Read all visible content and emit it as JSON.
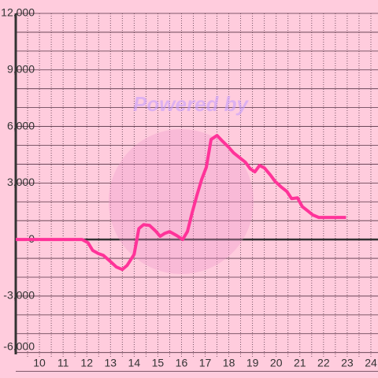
{
  "chart_data": {
    "type": "line",
    "watermark": "Powered by",
    "x": [
      9,
      11.8,
      12.05,
      12.25,
      12.5,
      12.7,
      13,
      13.25,
      13.5,
      13.7,
      14,
      14.2,
      14.4,
      14.65,
      14.9,
      15.1,
      15.3,
      15.5,
      15.8,
      16.05,
      16.25,
      16.45,
      16.65,
      16.85,
      17.05,
      17.25,
      17.5,
      17.7,
      18,
      18.2,
      18.45,
      18.7,
      18.9,
      19.1,
      19.3,
      19.5,
      19.75,
      19.95,
      20.2,
      20.45,
      20.65,
      20.9,
      21.1,
      21.35,
      21.55,
      21.8,
      22.95
    ],
    "series": [
      {
        "color": "#ff3399",
        "values": [
          0,
          0,
          -170,
          -580,
          -750,
          -840,
          -1170,
          -1460,
          -1590,
          -1380,
          -790,
          580,
          790,
          750,
          460,
          170,
          330,
          420,
          210,
          0,
          420,
          1420,
          2340,
          3180,
          3840,
          5310,
          5520,
          5260,
          4890,
          4600,
          4350,
          4100,
          3760,
          3590,
          3930,
          3800,
          3430,
          3090,
          2800,
          2550,
          2170,
          2210,
          1750,
          1500,
          1300,
          1170,
          1170
        ]
      }
    ],
    "xlim": [
      9,
      24.3
    ],
    "ylim": [
      -7350,
      12000
    ],
    "xticks": [
      10,
      11,
      12,
      13,
      14,
      15,
      16,
      17,
      18,
      19,
      20,
      21,
      22,
      23,
      24
    ],
    "yticks": [
      {
        "value": -6000,
        "label": "-6,000"
      },
      {
        "value": -3000,
        "label": "-3,000"
      },
      0,
      {
        "value": 3000,
        "label": "3,000"
      },
      {
        "value": 6000,
        "label": "6,000"
      },
      {
        "value": 9000,
        "label": "9,000"
      },
      {
        "value": 12000,
        "label": "12,000"
      }
    ],
    "xminorticks": [
      9.5,
      10.5,
      11.5,
      12.5,
      13.5,
      14.5,
      15.5,
      16.5,
      17.5,
      18.5,
      19.5,
      20.5,
      21.5,
      22.5,
      23.5
    ],
    "yminorticks": [
      -7000,
      -5000,
      -4000,
      -2000,
      -1000,
      1000,
      2000,
      4000,
      5000,
      7000,
      8000,
      10000,
      11000
    ],
    "grid": true,
    "background": "#ffccdd"
  }
}
